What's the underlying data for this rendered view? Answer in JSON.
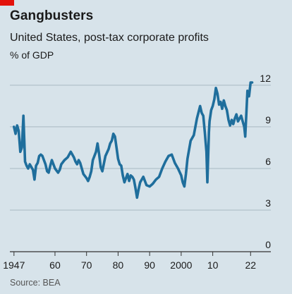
{
  "header": {
    "title": "Gangbusters",
    "subtitle": "United States, post-tax corporate profits",
    "units": "% of GDP"
  },
  "footer": {
    "source": "Source: BEA"
  },
  "colors": {
    "line": "#1f6e9c",
    "background": "#d7e3ea",
    "accent": "#e3120b",
    "grid": "#a9b8c2"
  },
  "chart_data": {
    "type": "line",
    "title": "Gangbusters",
    "subtitle": "United States, post-tax corporate profits",
    "ylabel": "% of GDP",
    "ylim": [
      0,
      12.3
    ],
    "xlim": [
      1945.7,
      2023.5
    ],
    "yticks": [
      0,
      3,
      6,
      9,
      12
    ],
    "xticks": [
      1947,
      1960,
      1970,
      1980,
      1990,
      2000,
      2010,
      2022
    ],
    "xtick_labels": [
      "1947",
      "60",
      "70",
      "80",
      "90",
      "2000",
      "10",
      "22"
    ],
    "grid": true,
    "y_axis_side": "right",
    "series": [
      {
        "x": [
          1947,
          1947.5,
          1948,
          1948.5,
          1949,
          1949.5,
          1950,
          1950.5,
          1951,
          1951.5,
          1952,
          1953,
          1953.5,
          1954,
          1954.5,
          1955,
          1955.5,
          1956,
          1957,
          1957.5,
          1958,
          1958.5,
          1959,
          1960,
          1961,
          1961.5,
          1962,
          1963,
          1964,
          1965,
          1965.5,
          1966,
          1966.5,
          1967,
          1967.5,
          1968,
          1969,
          1970,
          1970.5,
          1971,
          1971.5,
          1972,
          1973,
          1973.5,
          1974,
          1974.5,
          1975,
          1976,
          1977,
          1977.5,
          1978,
          1978.5,
          1979,
          1979.5,
          1980,
          1980.5,
          1981,
          1981.5,
          1982,
          1983,
          1983.5,
          1984,
          1984.5,
          1985,
          1985.5,
          1986,
          1986.5,
          1987,
          1988,
          1989,
          1990,
          1991,
          1992,
          1993,
          1994,
          1995,
          1996,
          1997,
          1998,
          1999,
          2000,
          2000.5,
          2001,
          2001.5,
          2002,
          2003,
          2004,
          2005,
          2006,
          2006.5,
          2007,
          2007.5,
          2008,
          2008.3,
          2008.8,
          2009,
          2009.5,
          2010,
          2010.5,
          2011,
          2011.5,
          2012,
          2012.5,
          2013,
          2013.5,
          2014,
          2014.5,
          2015,
          2015.5,
          2016,
          2016.5,
          2017,
          2017.5,
          2018,
          2018.5,
          2019,
          2019.5,
          2020,
          2020.3,
          2020.7,
          2021,
          2021.5,
          2022,
          2022.5
        ],
        "y": [
          9.0,
          8.5,
          9.1,
          8.7,
          7.2,
          7.5,
          9.8,
          6.5,
          6.2,
          6.0,
          6.3,
          5.9,
          5.2,
          6.2,
          6.4,
          6.9,
          7.0,
          6.9,
          6.3,
          5.8,
          5.7,
          6.2,
          6.6,
          6.0,
          5.7,
          5.9,
          6.3,
          6.6,
          6.8,
          7.2,
          7.0,
          6.8,
          6.5,
          6.3,
          6.6,
          6.4,
          5.6,
          5.3,
          5.1,
          5.4,
          5.8,
          6.6,
          7.2,
          7.8,
          7.0,
          6.1,
          5.8,
          6.9,
          7.4,
          7.8,
          8.0,
          8.5,
          8.3,
          7.5,
          6.7,
          6.3,
          6.2,
          5.5,
          5.0,
          5.6,
          5.1,
          5.5,
          5.4,
          5.2,
          4.6,
          3.9,
          4.5,
          5.0,
          5.4,
          4.8,
          4.7,
          4.9,
          5.2,
          5.4,
          6.0,
          6.5,
          6.9,
          7.0,
          6.4,
          6.0,
          5.5,
          5.0,
          4.7,
          5.6,
          6.7,
          8.0,
          8.4,
          9.6,
          10.5,
          10.0,
          9.8,
          8.6,
          7.2,
          5.0,
          8.6,
          9.4,
          10.2,
          10.5,
          11.0,
          11.8,
          11.4,
          10.6,
          10.8,
          10.3,
          10.9,
          10.5,
          10.2,
          9.5,
          9.1,
          9.5,
          9.2,
          9.6,
          9.9,
          9.4,
          9.6,
          9.8,
          9.4,
          9.0,
          8.3,
          10.2,
          11.6,
          11.2,
          12.2,
          12.2
        ]
      }
    ]
  }
}
